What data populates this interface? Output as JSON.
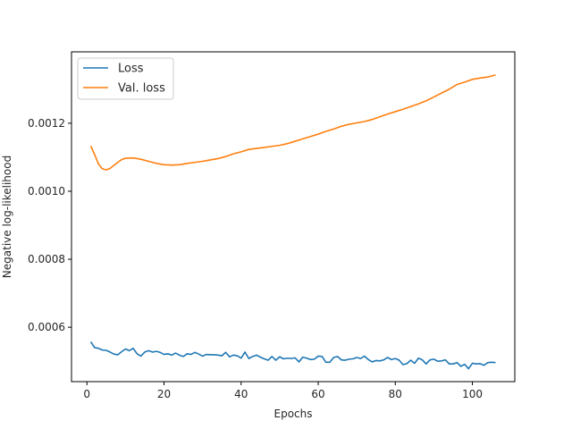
{
  "chart_data": {
    "type": "line",
    "title": "",
    "xlabel": "Epochs",
    "ylabel": "Negative log-likelihood",
    "xlim": [
      -4,
      111
    ],
    "ylim": [
      0.00044,
      0.00141
    ],
    "xticks": [
      0,
      20,
      40,
      60,
      80,
      100
    ],
    "yticks": [
      0.0006,
      0.0008,
      0.001,
      0.0012
    ],
    "ytick_labels": [
      "0.0006",
      "0.0008",
      "0.0010",
      "0.0012"
    ],
    "grid": false,
    "legend_position": "top-left",
    "series": [
      {
        "name": "Loss",
        "color": "#1f77b4",
        "x": [
          1,
          2,
          3,
          4,
          5,
          6,
          7,
          8,
          9,
          10,
          11,
          12,
          13,
          14,
          15,
          16,
          17,
          18,
          19,
          20,
          21,
          22,
          23,
          24,
          25,
          26,
          27,
          28,
          29,
          30,
          31,
          32,
          33,
          34,
          35,
          36,
          37,
          38,
          39,
          40,
          41,
          42,
          43,
          44,
          45,
          46,
          47,
          48,
          49,
          50,
          51,
          52,
          53,
          54,
          55,
          56,
          57,
          58,
          59,
          60,
          61,
          62,
          63,
          64,
          65,
          66,
          67,
          68,
          69,
          70,
          71,
          72,
          73,
          74,
          75,
          76,
          77,
          78,
          79,
          80,
          81,
          82,
          83,
          84,
          85,
          86,
          87,
          88,
          89,
          90,
          91,
          92,
          93,
          94,
          95,
          96,
          97,
          98,
          99,
          100,
          101,
          102,
          103,
          104,
          105,
          106
        ],
        "y": [
          0.000557,
          0.00054,
          0.000538,
          0.000533,
          0.000532,
          0.000527,
          0.000521,
          0.000519,
          0.000528,
          0.000536,
          0.000531,
          0.000538,
          0.000522,
          0.000515,
          0.000527,
          0.000531,
          0.000527,
          0.000529,
          0.000526,
          0.00052,
          0.000522,
          0.000518,
          0.000524,
          0.000518,
          0.000514,
          0.000522,
          0.00052,
          0.000526,
          0.000521,
          0.000515,
          0.00052,
          0.000519,
          0.000519,
          0.000518,
          0.000516,
          0.000526,
          0.000513,
          0.000518,
          0.000516,
          0.000509,
          0.000527,
          0.000508,
          0.000514,
          0.000518,
          0.000512,
          0.000507,
          0.000503,
          0.000514,
          0.000503,
          0.000513,
          0.000507,
          0.000509,
          0.000508,
          0.00051,
          0.000498,
          0.000512,
          0.000509,
          0.000505,
          0.000506,
          0.000515,
          0.000514,
          0.000497,
          0.000497,
          0.000511,
          0.000514,
          0.000504,
          0.000503,
          0.000506,
          0.000507,
          0.000511,
          0.000508,
          0.000515,
          0.000505,
          0.000498,
          0.000502,
          0.000501,
          0.000504,
          0.000511,
          0.000505,
          0.000508,
          0.000503,
          0.00049,
          0.000493,
          0.000503,
          0.000494,
          0.000509,
          0.000504,
          0.000492,
          0.000504,
          0.000506,
          0.0005,
          0.000501,
          0.000504,
          0.000492,
          0.000492,
          0.000496,
          0.000485,
          0.000491,
          0.000478,
          0.000494,
          0.000492,
          0.000493,
          0.000488,
          0.000496,
          0.000497,
          0.000496
        ]
      },
      {
        "name": "Val. loss",
        "color": "#ff7f0e",
        "x": [
          1,
          2,
          3,
          4,
          5,
          6,
          7,
          8,
          9,
          10,
          12,
          14,
          16,
          18,
          20,
          22,
          24,
          26,
          28,
          30,
          32,
          34,
          36,
          38,
          40,
          42,
          44,
          46,
          48,
          50,
          52,
          54,
          56,
          58,
          60,
          62,
          64,
          66,
          68,
          70,
          72,
          74,
          76,
          78,
          80,
          82,
          84,
          86,
          88,
          90,
          92,
          94,
          96,
          98,
          100,
          102,
          104,
          106
        ],
        "y": [
          0.001133,
          0.001108,
          0.00108,
          0.001066,
          0.001063,
          0.001067,
          0.001076,
          0.001085,
          0.001093,
          0.001097,
          0.001098,
          0.001094,
          0.001088,
          0.001082,
          0.001078,
          0.001077,
          0.001078,
          0.001082,
          0.001085,
          0.001088,
          0.001092,
          0.001096,
          0.001102,
          0.00111,
          0.001116,
          0.001123,
          0.001126,
          0.001129,
          0.001132,
          0.001135,
          0.00114,
          0.001147,
          0.001154,
          0.001161,
          0.001168,
          0.001176,
          0.001183,
          0.001191,
          0.001197,
          0.001201,
          0.001205,
          0.001211,
          0.001219,
          0.001227,
          0.001234,
          0.001241,
          0.001249,
          0.001257,
          0.001266,
          0.001277,
          0.001289,
          0.0013,
          0.001314,
          0.001321,
          0.001329,
          0.001333,
          0.001336,
          0.001342
        ]
      }
    ]
  }
}
